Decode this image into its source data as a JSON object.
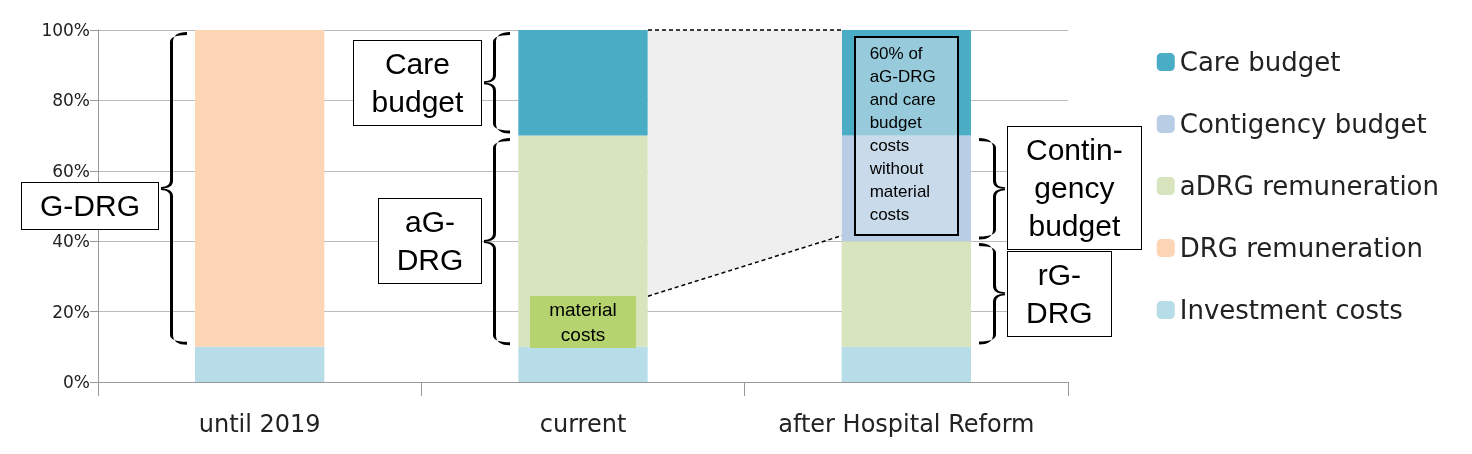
{
  "chart_data": {
    "type": "bar",
    "stacked": true,
    "categories": [
      "until 2019",
      "current",
      "after Hospital Reform"
    ],
    "series": [
      {
        "name": "Investment costs",
        "color": "#b7dee8",
        "values": [
          10,
          10,
          10
        ]
      },
      {
        "name": "DRG remuneration",
        "color": "#fcd5b5",
        "values": [
          90,
          0,
          0
        ]
      },
      {
        "name": "aDRG remuneration",
        "color": "#d7e4bd",
        "values": [
          0,
          60,
          30
        ]
      },
      {
        "name": "Contigency budget",
        "color": "#b9cde5",
        "values": [
          0,
          0,
          30
        ]
      },
      {
        "name": "Care budget",
        "color": "#4bacc6",
        "values": [
          0,
          30,
          30
        ]
      }
    ],
    "ylim": [
      0,
      100
    ],
    "yticks": [
      {
        "value": 0,
        "label": "0%"
      },
      {
        "value": 20,
        "label": "20%"
      },
      {
        "value": 40,
        "label": "40%"
      },
      {
        "value": 60,
        "label": "60%"
      },
      {
        "value": 80,
        "label": "80%"
      },
      {
        "value": 100,
        "label": "100%"
      }
    ],
    "grid": "y",
    "legend": "right",
    "annotations": [
      "G-DRG",
      "Care budget",
      "aG-DRG",
      "material costs",
      "60% of aG-DRG and care budget costs without material costs",
      "Contin-gency budget",
      "rG-DRG"
    ]
  }
}
